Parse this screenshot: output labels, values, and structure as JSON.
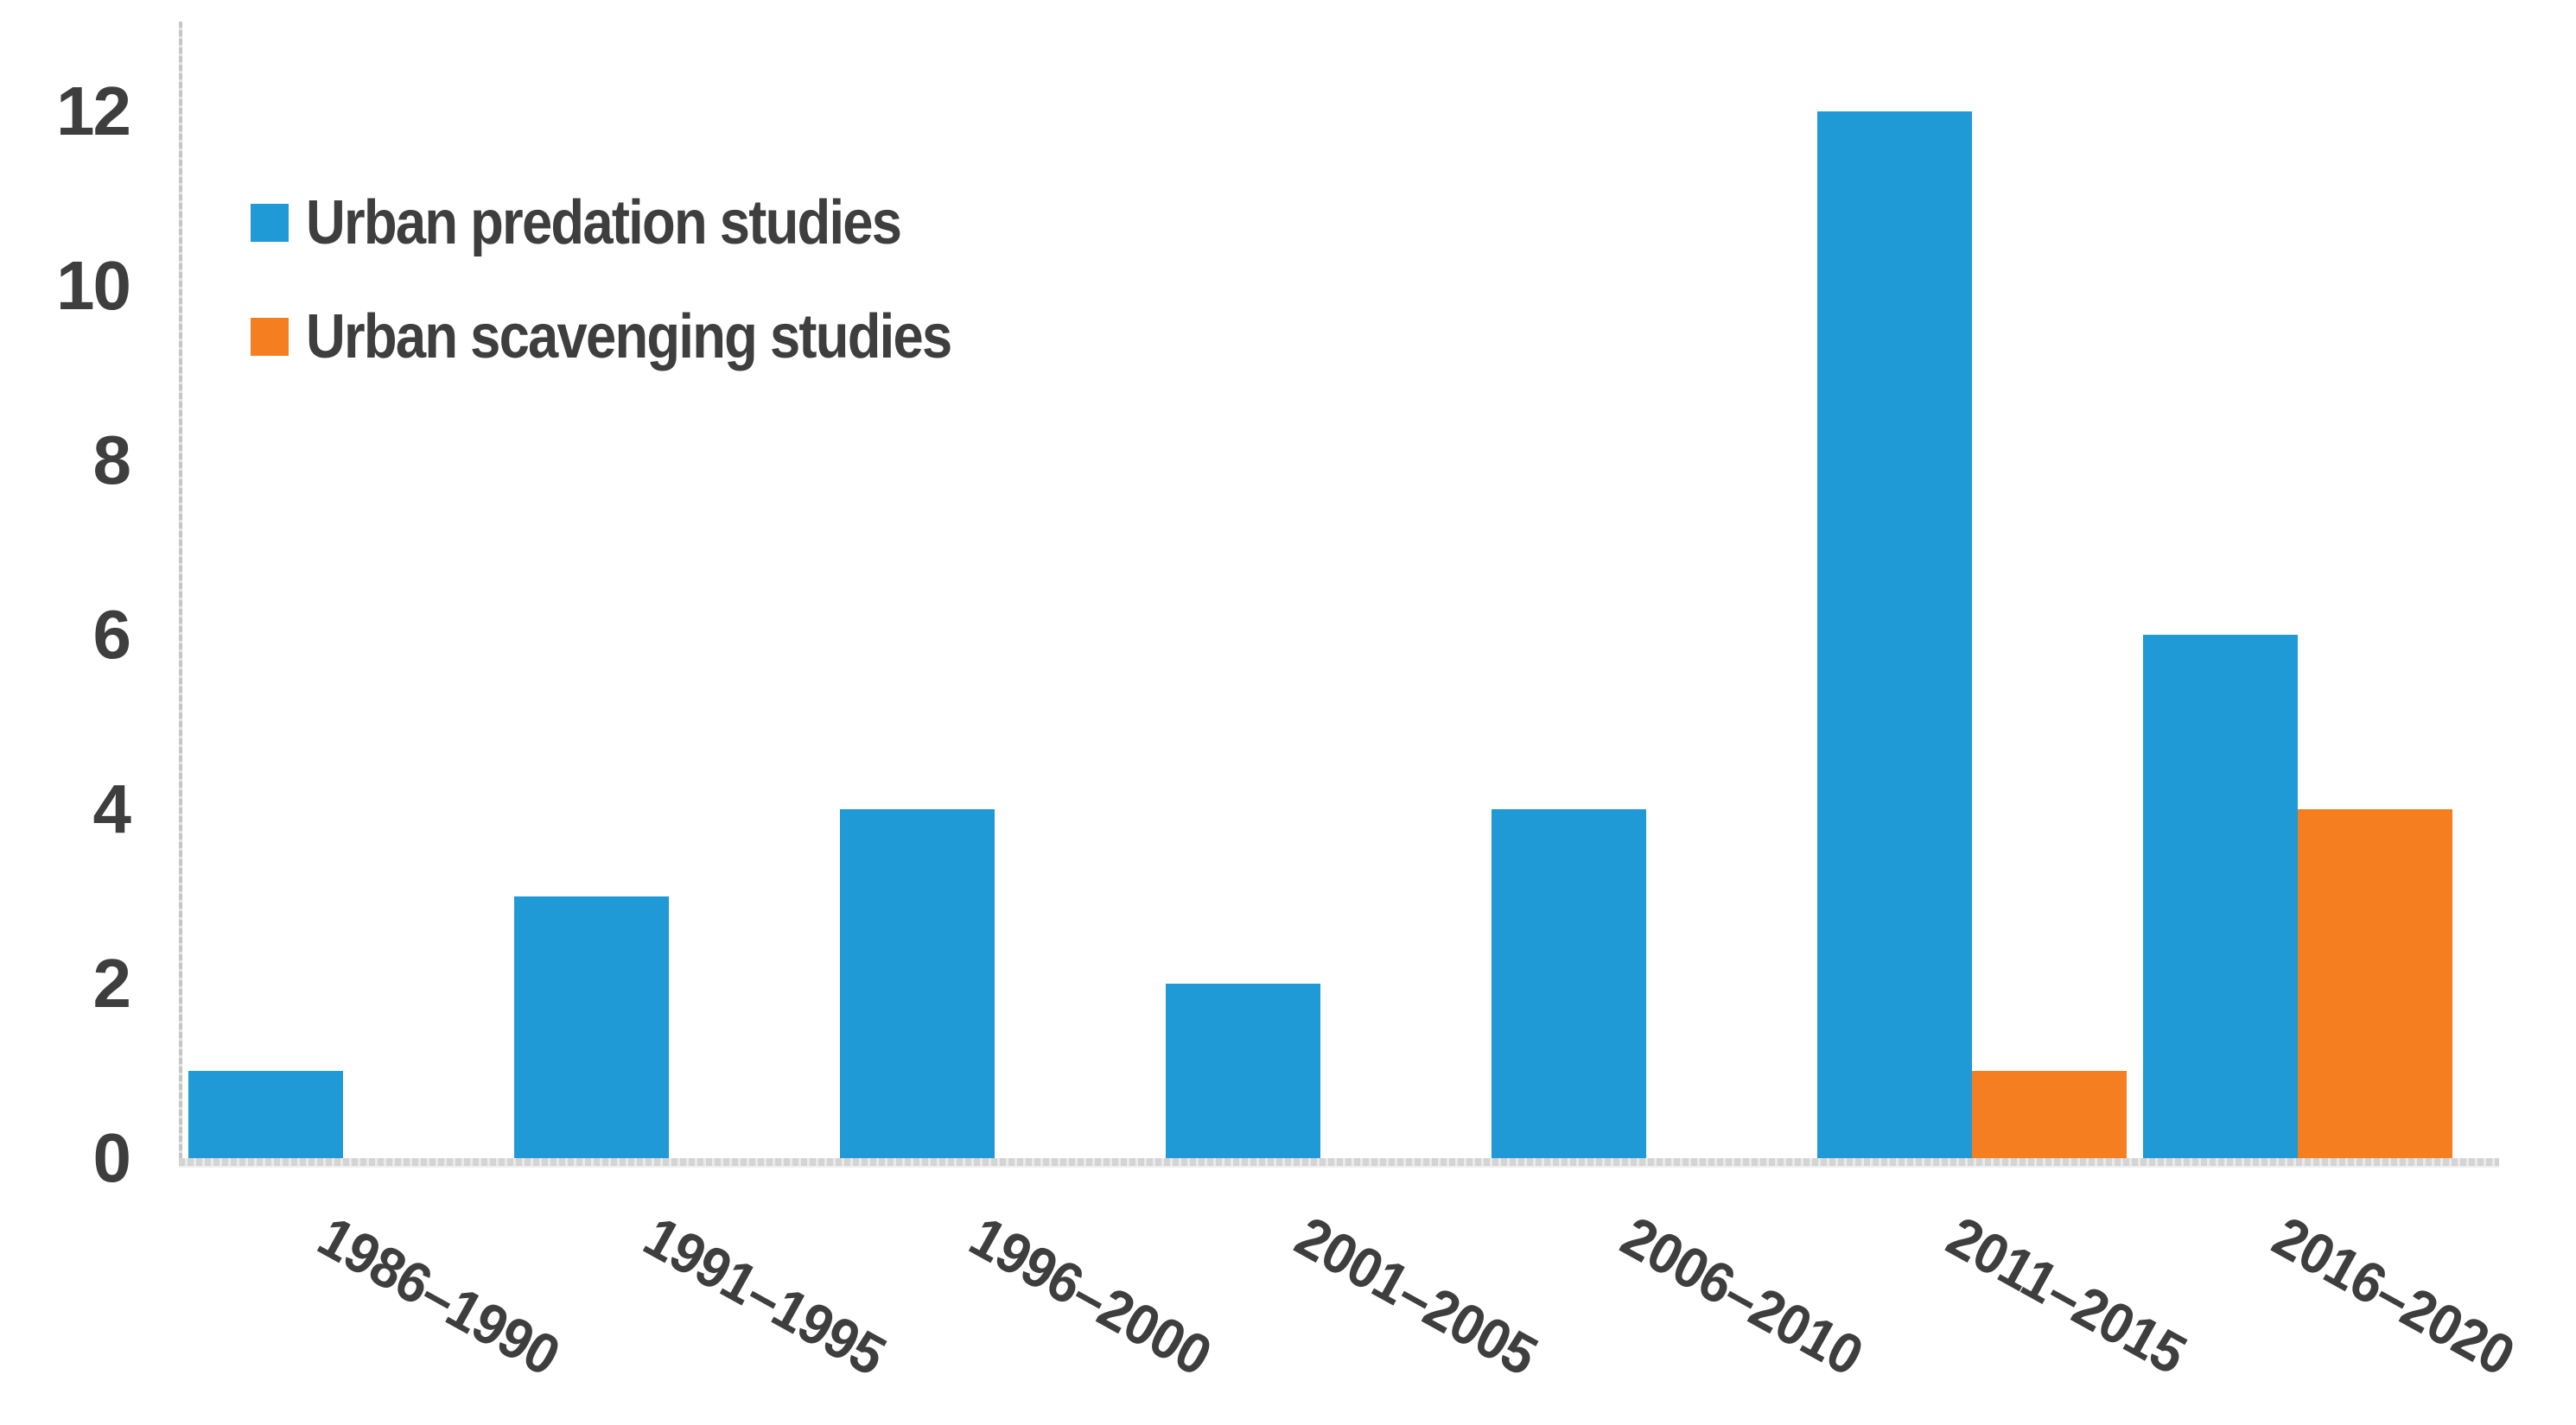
{
  "chart_data": {
    "type": "bar",
    "title": "",
    "xlabel": "",
    "ylabel": "",
    "categories": [
      "1986–1990",
      "1991–1995",
      "1996–2000",
      "2001–2005",
      "2006–2010",
      "2011–2015",
      "2016–2020"
    ],
    "series": [
      {
        "name": "Urban predation studies",
        "color": "#1f9ad6",
        "values": [
          1,
          3,
          4,
          2,
          4,
          12,
          6
        ]
      },
      {
        "name": "Urban scavenging studies",
        "color": "#f57e20",
        "values": [
          0,
          0,
          0,
          0,
          0,
          1,
          4
        ]
      }
    ],
    "ylim": [
      0,
      12
    ],
    "yticks": [
      0,
      2,
      4,
      6,
      8,
      10,
      12
    ],
    "grid": false,
    "legend_position": "inside-top-left",
    "x_tick_rotation_deg": -29,
    "axis_color": "#c6c6c6",
    "text_color": "#3e3e3e",
    "background_color": "#ffffff"
  }
}
